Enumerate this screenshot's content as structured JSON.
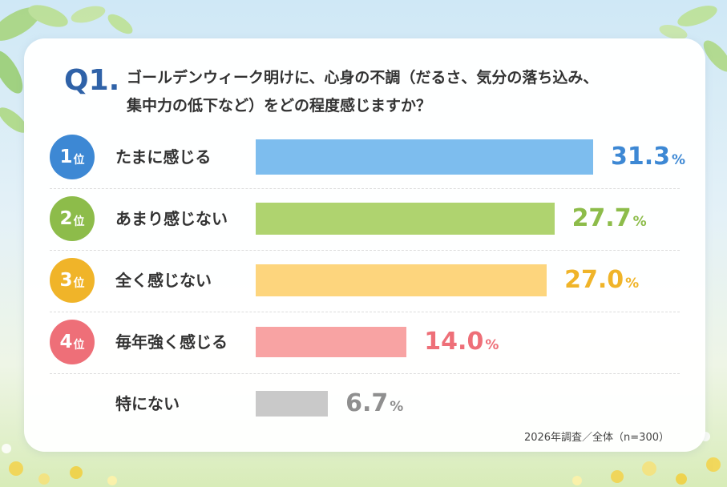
{
  "question": {
    "label": "Q1.",
    "line1": "ゴールデンウィーク明けに、心身の不調（だるさ、気分の落ち込み、",
    "line2": "集中力の低下など）をどの程度感じますか？"
  },
  "footnote": "2026年調査／全体（n=300）",
  "rank_suffix": "位",
  "percent_sign": "%",
  "chart_data": {
    "type": "bar",
    "orientation": "horizontal",
    "title": "ゴールデンウィーク明けに、心身の不調（だるさ、気分の落ち込み、集中力の低下など）をどの程度感じますか？",
    "categories": [
      "たまに感じる",
      "あまり感じない",
      "全く感じない",
      "毎年強く感じる",
      "特にない"
    ],
    "values": [
      31.3,
      27.7,
      27.0,
      14.0,
      6.7
    ],
    "value_labels": [
      "31.3",
      "27.7",
      "27.0",
      "14.0",
      "6.7"
    ],
    "ranks": [
      "1",
      "2",
      "3",
      "4",
      ""
    ],
    "unit": "%",
    "colors": [
      "#7dbdee",
      "#afd36f",
      "#fdd57d",
      "#f8a3a3",
      "#c9c9c9"
    ],
    "label_colors": [
      "#3d88d4",
      "#8dbc4a",
      "#f0b429",
      "#ee6f78",
      "#8f8f8f"
    ],
    "grid": false,
    "legend": "none"
  }
}
